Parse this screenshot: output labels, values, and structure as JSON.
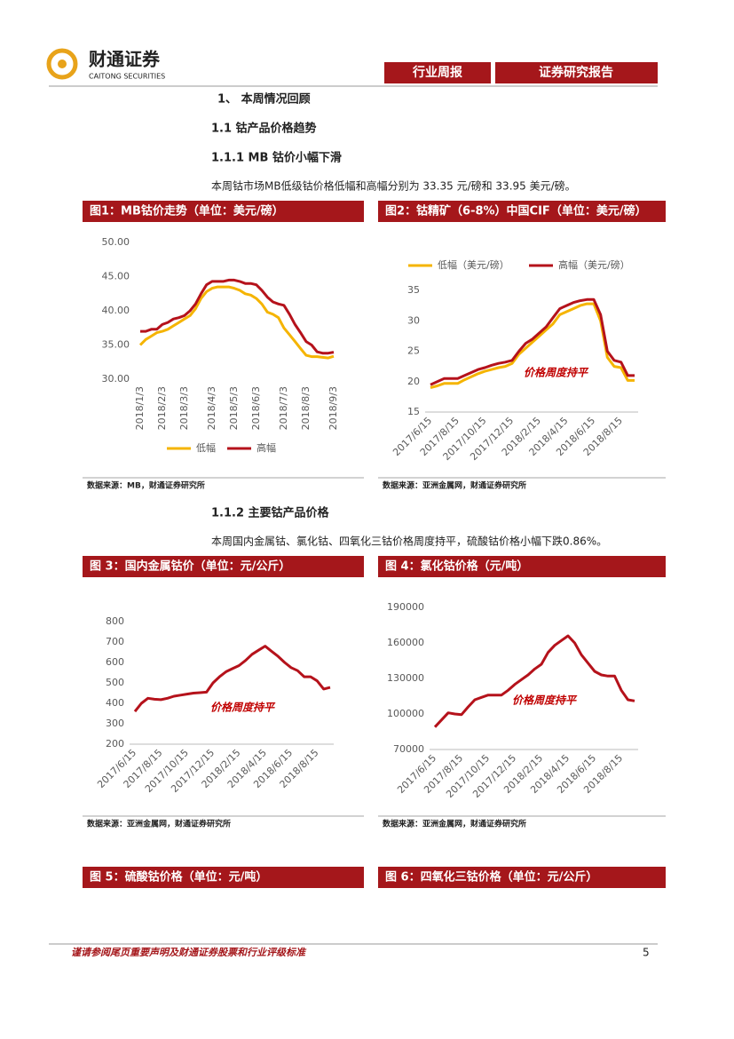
{
  "header": {
    "logo_cn": "财通证券",
    "logo_en": "CAITONG SECURITIES",
    "tag1": "行业周报",
    "tag2": "证券研究报告"
  },
  "headings": [
    "1、 本周情况回顾",
    "1.1  钴产品价格趋势",
    "1.1.1  MB 钴价小幅下滑",
    "1.1.2  主要钴产品价格"
  ],
  "paragraphs": [
    "本周钴市场MB低级钴价格低幅和高幅分别为 33.35 元/磅和 33.95 美元/磅。",
    "本周国内金属钴、氯化钴、四氧化三钴价格周度持平，硫酸钴价格小幅下跌0.86%。"
  ],
  "figures": [
    {
      "title": "图1：MB钴价走势（单位：美元/磅）",
      "source": "数据来源：MB，财通证券研究所"
    },
    {
      "title": "图2：钴精矿（6-8%）中国CIF（单位：美元/磅）",
      "source": "数据来源：亚洲金属网，财通证券研究所"
    },
    {
      "title": "图 3：国内金属钴价（单位：元/公斤）",
      "source": "数据来源：亚洲金属网，财通证券研究所"
    },
    {
      "title": "图 4：氯化钴价格（元/吨）",
      "source": "数据来源：亚洲金属网，财通证券研究所"
    },
    {
      "title": "图 5：硫酸钴价格（单位：元/吨）"
    },
    {
      "title": "图 6：四氧化三钴价格（单位：元/公斤）"
    }
  ],
  "footer": {
    "text": "谨请参阅尾页重要声明及财通证券股票和行业评级标准",
    "page": "5"
  },
  "chart_data": [
    {
      "type": "line",
      "legend": "bottom",
      "categories": [
        "2018/1/3",
        null,
        null,
        null,
        "2018/2/3",
        null,
        null,
        null,
        "2018/3/3",
        null,
        null,
        null,
        null,
        "2018/4/3",
        null,
        null,
        null,
        "2018/5/3",
        null,
        null,
        null,
        "2018/6/3",
        null,
        null,
        null,
        null,
        "2018/7/3",
        null,
        null,
        null,
        "2018/8/3",
        null,
        null,
        null,
        null,
        "2018/9/3"
      ],
      "series": [
        {
          "name": "低幅",
          "color": "#f5b400",
          "values": [
            35.0,
            35.8,
            36.3,
            36.8,
            37.0,
            37.3,
            37.8,
            38.3,
            38.8,
            39.3,
            40.3,
            41.8,
            42.8,
            43.3,
            43.5,
            43.5,
            43.5,
            43.3,
            43.0,
            42.5,
            42.3,
            41.8,
            41.0,
            39.8,
            39.5,
            39.0,
            37.5,
            36.5,
            35.5,
            34.5,
            33.5,
            33.3,
            33.3,
            33.2,
            33.1,
            33.35
          ]
        },
        {
          "name": "高幅",
          "color": "#b5121b",
          "values": [
            37.0,
            37.0,
            37.3,
            37.3,
            38.0,
            38.3,
            38.8,
            39.0,
            39.3,
            40.0,
            41.0,
            42.5,
            43.8,
            44.3,
            44.3,
            44.3,
            44.5,
            44.5,
            44.3,
            44.0,
            44.0,
            43.8,
            43.0,
            42.0,
            41.3,
            41.0,
            40.8,
            39.5,
            38.0,
            36.8,
            35.5,
            35.0,
            34.0,
            33.8,
            33.8,
            33.95
          ]
        }
      ],
      "ylim": [
        30,
        50
      ],
      "yticks": [
        {
          "value": 30,
          "label": "30.00"
        },
        {
          "value": 35,
          "label": "35.00"
        },
        {
          "value": 40,
          "label": "40.00"
        },
        {
          "value": 45,
          "label": "45.00"
        },
        {
          "value": 50,
          "label": "50.00"
        }
      ]
    },
    {
      "type": "line",
      "legend": "top",
      "annotation": "价格周度持平",
      "categories": [
        "2017/6/15",
        null,
        null,
        null,
        "2017/8/15",
        null,
        null,
        null,
        "2017/10/15",
        null,
        null,
        null,
        "2017/12/15",
        null,
        null,
        null,
        "2018/2/15",
        null,
        null,
        null,
        "2018/4/15",
        null,
        null,
        null,
        "2018/6/15",
        null,
        null,
        null,
        "2018/8/15",
        null,
        null
      ],
      "series": [
        {
          "name": "低幅（美元/磅）",
          "color": "#f5b400",
          "values": [
            19,
            19.3,
            19.7,
            19.7,
            19.7,
            20.3,
            20.8,
            21.3,
            21.7,
            22,
            22.3,
            22.5,
            23,
            24.5,
            25.5,
            26.5,
            27.5,
            28.5,
            29.5,
            31,
            31.5,
            32,
            32.5,
            32.8,
            32.8,
            30,
            24,
            22.5,
            22.3,
            20.2,
            20.2
          ]
        },
        {
          "name": "高幅（美元/磅）",
          "color": "#b5121b",
          "values": [
            19.5,
            20,
            20.5,
            20.5,
            20.5,
            21,
            21.5,
            22,
            22.3,
            22.7,
            23,
            23.2,
            23.5,
            25,
            26.3,
            27,
            28,
            29,
            30.5,
            32,
            32.5,
            33,
            33.3,
            33.5,
            33.5,
            31,
            25,
            23.5,
            23.2,
            21,
            21
          ]
        }
      ],
      "ylim": [
        15,
        35
      ],
      "yticks": [
        15,
        20,
        25,
        30,
        35
      ]
    },
    {
      "type": "line",
      "annotation": "价格周度持平",
      "categories": [
        "2017/6/15",
        null,
        null,
        null,
        "2017/8/15",
        null,
        null,
        null,
        "2017/10/15",
        null,
        null,
        null,
        "2017/12/15",
        null,
        null,
        null,
        "2018/2/15",
        null,
        null,
        null,
        "2018/4/15",
        null,
        null,
        null,
        "2018/6/15",
        null,
        null,
        null,
        "2018/8/15",
        null,
        null
      ],
      "series": [
        {
          "color": "#b5121b",
          "values": [
            360,
            400,
            425,
            420,
            418,
            425,
            435,
            440,
            445,
            450,
            452,
            455,
            500,
            530,
            555,
            570,
            585,
            610,
            640,
            660,
            680,
            655,
            630,
            600,
            575,
            560,
            530,
            530,
            510,
            470,
            478
          ]
        }
      ],
      "ylim": [
        200,
        800
      ],
      "yticks": [
        200,
        300,
        400,
        500,
        600,
        700,
        800
      ]
    },
    {
      "type": "line",
      "annotation": "价格周度持平",
      "categories": [
        "2017/6/15",
        null,
        null,
        null,
        "2017/8/15",
        null,
        null,
        null,
        "2017/10/15",
        null,
        null,
        null,
        "2017/12/15",
        null,
        null,
        null,
        "2018/2/15",
        null,
        null,
        null,
        "2018/4/15",
        null,
        null,
        null,
        "2018/6/15",
        null,
        null,
        null,
        "2018/8/15",
        null,
        null
      ],
      "series": [
        {
          "color": "#b5121b",
          "values": [
            89000,
            95000,
            101000,
            100000,
            99500,
            106000,
            112000,
            114000,
            116000,
            116000,
            116000,
            120000,
            125000,
            129000,
            133000,
            138000,
            142000,
            152000,
            158000,
            162000,
            166000,
            160000,
            150000,
            143000,
            136000,
            133000,
            132000,
            132000,
            120000,
            112000,
            111000
          ]
        }
      ],
      "ylim": [
        70000,
        190000
      ],
      "yticks": [
        70000,
        100000,
        130000,
        160000,
        190000
      ]
    }
  ]
}
